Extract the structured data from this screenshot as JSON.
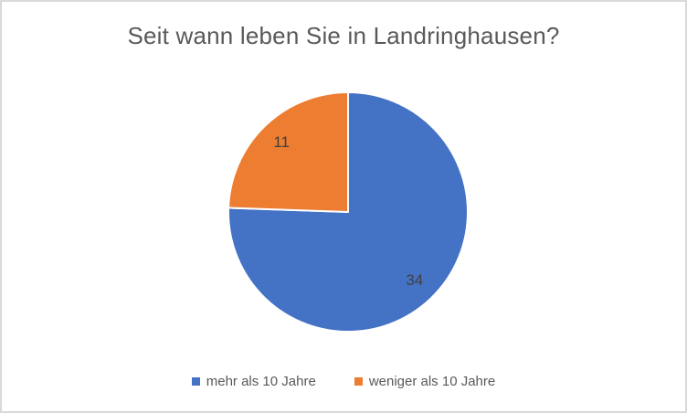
{
  "window": {
    "background": "#FFFFFF",
    "border_color": "#D9D9D9"
  },
  "chart_data": {
    "type": "pie",
    "title": "Seit wann leben Sie in Landringhausen?",
    "categories": [
      "mehr als 10 Jahre",
      "weniger als 10 Jahre"
    ],
    "values": [
      34,
      11
    ],
    "data_labels": [
      "34",
      "11"
    ],
    "colors": [
      "#4472C4",
      "#ED7D31"
    ],
    "start_angle_deg": 0,
    "direction": "clockwise",
    "legend_position": "bottom",
    "title_color": "#595959",
    "data_label_color": "#404040",
    "legend_text_color": "#595959"
  },
  "legend": {
    "items": [
      {
        "label": "mehr als 10 Jahre",
        "swatch_color": "#4472C4"
      },
      {
        "label": "weniger als 10 Jahre",
        "swatch_color": "#ED7D31"
      }
    ]
  }
}
